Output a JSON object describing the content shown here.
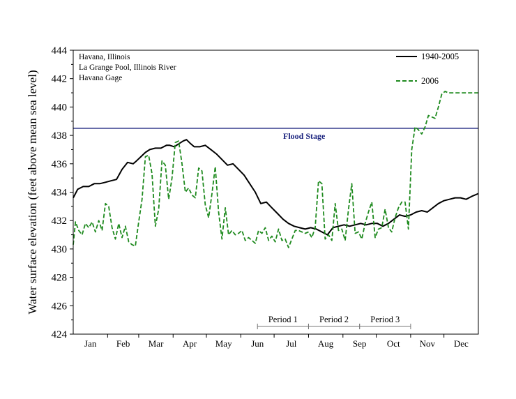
{
  "chart_data": {
    "type": "line",
    "title": "",
    "xlabel": "",
    "ylabel": "Water surface elevation (feet above mean sea level)",
    "ylim": [
      424,
      444
    ],
    "yticks": [
      424,
      426,
      428,
      430,
      432,
      434,
      436,
      438,
      440,
      442,
      444
    ],
    "xlim": [
      1,
      366
    ],
    "months": [
      {
        "label": "Jan",
        "start": 1
      },
      {
        "label": "Feb",
        "start": 32
      },
      {
        "label": "Mar",
        "start": 60
      },
      {
        "label": "Apr",
        "start": 91
      },
      {
        "label": "May",
        "start": 121
      },
      {
        "label": "Jun",
        "start": 152
      },
      {
        "label": "Jul",
        "start": 182
      },
      {
        "label": "Aug",
        "start": 213
      },
      {
        "label": "Sep",
        "start": 244
      },
      {
        "label": "Oct",
        "start": 274
      },
      {
        "label": "Nov",
        "start": 305
      },
      {
        "label": "Dec",
        "start": 335
      }
    ],
    "annotation_lines": [
      "Havana, Illinois",
      "La Grange Pool, Illinois River",
      "Havana Gage"
    ],
    "flood_stage": {
      "label": "Flood Stage",
      "value": 438.5,
      "color": "#1a237e"
    },
    "periods": [
      {
        "label": "Period 1",
        "start": 167,
        "end": 213
      },
      {
        "label": "Period 2",
        "start": 213,
        "end": 259
      },
      {
        "label": "Period 3",
        "start": 259,
        "end": 305
      }
    ],
    "legend_position": "top-right",
    "series": [
      {
        "name": "1940-2005",
        "color": "#000000",
        "style": "solid",
        "x": [
          1,
          5,
          10,
          15,
          20,
          25,
          30,
          35,
          40,
          45,
          50,
          55,
          58,
          62,
          66,
          70,
          75,
          80,
          85,
          88,
          92,
          96,
          100,
          103,
          107,
          110,
          115,
          120,
          125,
          130,
          135,
          140,
          145,
          150,
          155,
          160,
          165,
          170,
          175,
          180,
          185,
          190,
          195,
          200,
          205,
          210,
          215,
          220,
          225,
          230,
          235,
          240,
          245,
          250,
          255,
          260,
          265,
          270,
          275,
          280,
          285,
          290,
          295,
          300,
          305,
          310,
          315,
          320,
          325,
          330,
          335,
          340,
          345,
          350,
          355,
          360,
          366
        ],
        "y": [
          433.6,
          434.2,
          434.4,
          434.4,
          434.6,
          434.6,
          434.7,
          434.8,
          434.9,
          435.6,
          436.1,
          436.0,
          436.2,
          436.5,
          436.8,
          437.0,
          437.1,
          437.1,
          437.3,
          437.3,
          437.2,
          437.4,
          437.6,
          437.7,
          437.4,
          437.2,
          437.2,
          437.3,
          437.0,
          436.7,
          436.3,
          435.9,
          436.0,
          435.6,
          435.2,
          434.6,
          434.0,
          433.2,
          433.3,
          432.9,
          432.5,
          432.1,
          431.8,
          431.6,
          431.5,
          431.4,
          431.5,
          431.4,
          431.2,
          431.0,
          431.5,
          431.6,
          431.7,
          431.6,
          431.7,
          431.8,
          431.7,
          431.8,
          431.8,
          431.6,
          431.8,
          432.1,
          432.4,
          432.3,
          432.4,
          432.6,
          432.7,
          432.6,
          432.9,
          433.2,
          433.4,
          433.5,
          433.6,
          433.6,
          433.5,
          433.7,
          433.9
        ]
      },
      {
        "name": "2006",
        "color": "#1e8a1e",
        "style": "dashed",
        "x": [
          1,
          3,
          6,
          9,
          12,
          15,
          18,
          21,
          24,
          27,
          30,
          33,
          36,
          39,
          42,
          45,
          48,
          51,
          54,
          57,
          60,
          63,
          66,
          69,
          72,
          75,
          78,
          81,
          84,
          87,
          90,
          93,
          96,
          99,
          102,
          105,
          108,
          111,
          114,
          117,
          120,
          123,
          126,
          129,
          132,
          135,
          138,
          141,
          144,
          147,
          150,
          153,
          156,
          159,
          162,
          165,
          168,
          171,
          174,
          177,
          180,
          183,
          186,
          189,
          192,
          195,
          198,
          201,
          204,
          207,
          210,
          213,
          216,
          219,
          222,
          225,
          228,
          231,
          234,
          237,
          240,
          243,
          246,
          249,
          252,
          255,
          258,
          261,
          264,
          267,
          270,
          273,
          276,
          279,
          282,
          285,
          288,
          291,
          294,
          297,
          300,
          303,
          306,
          309,
          312,
          315,
          318,
          321,
          324,
          327,
          330,
          333,
          336,
          339,
          342,
          345,
          348,
          351,
          354,
          357,
          360,
          363,
          366
        ],
        "y": [
          430.3,
          431.9,
          431.3,
          431.0,
          431.8,
          431.5,
          431.9,
          431.2,
          432.0,
          431.3,
          433.2,
          433.0,
          431.5,
          430.7,
          431.8,
          430.8,
          431.6,
          430.5,
          430.3,
          430.2,
          431.9,
          433.5,
          436.5,
          436.6,
          435.3,
          431.6,
          432.8,
          436.2,
          435.9,
          433.5,
          435.0,
          437.5,
          437.6,
          436.0,
          434.0,
          434.3,
          433.8,
          433.6,
          435.7,
          435.5,
          433.1,
          432.2,
          433.9,
          435.8,
          432.6,
          430.7,
          432.9,
          431.0,
          431.3,
          431.0,
          431.1,
          431.3,
          430.6,
          430.8,
          430.6,
          430.4,
          431.3,
          431.1,
          431.5,
          430.6,
          430.9,
          430.5,
          431.4,
          430.6,
          430.7,
          430.1,
          430.7,
          431.3,
          431.3,
          431.2,
          431.1,
          431.2,
          430.8,
          431.5,
          434.8,
          434.6,
          430.7,
          431.0,
          430.6,
          433.2,
          431.3,
          431.4,
          430.6,
          432.8,
          434.6,
          431.1,
          431.2,
          430.7,
          431.8,
          432.6,
          433.3,
          430.8,
          431.4,
          431.5,
          432.8,
          431.5,
          431.2,
          432.2,
          432.9,
          433.3,
          433.3,
          431.4,
          437.0,
          438.6,
          438.4,
          438.1,
          438.6,
          439.4,
          439.3,
          439.2,
          440.0,
          440.9,
          441.1,
          441.0,
          441.0,
          441.0,
          441.0,
          441.0,
          441.0,
          441.0,
          441.0,
          441.0,
          441.0
        ]
      }
    ]
  }
}
